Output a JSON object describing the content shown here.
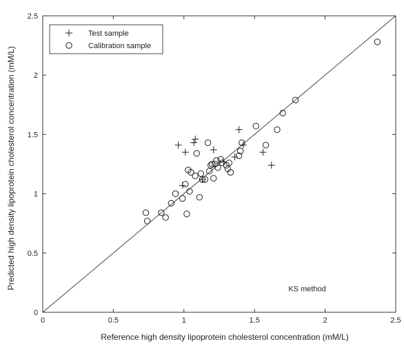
{
  "chart_data": {
    "type": "scatter",
    "xlabel": "Reference high density lipoprotein cholesterol concentration (mM/L)",
    "ylabel": "Predicted high density lipoprotein cholesterol concentration (mM/L)",
    "xlim": [
      0,
      2.5
    ],
    "ylim": [
      0,
      2.5
    ],
    "xticks": [
      0,
      0.5,
      1,
      1.5,
      2,
      2.5
    ],
    "yticks": [
      0,
      0.5,
      1,
      1.5,
      2,
      2.5
    ],
    "xtick_labels": [
      "0",
      "0.5",
      "1",
      "1.5",
      "2",
      "2.5"
    ],
    "ytick_labels": [
      "0",
      "0.5",
      "1",
      "1.5",
      "2",
      "2.5"
    ],
    "grid": false,
    "legend_position": "top-left",
    "annotation": "KS method",
    "reference_line": [
      [
        0,
        0
      ],
      [
        2.5,
        2.5
      ]
    ],
    "series": [
      {
        "name": "Test sample",
        "marker": "plus",
        "points": [
          [
            0.96,
            1.41
          ],
          [
            0.99,
            1.07
          ],
          [
            1.01,
            1.35
          ],
          [
            1.07,
            1.43
          ],
          [
            1.08,
            1.46
          ],
          [
            1.13,
            1.12
          ],
          [
            1.21,
            1.37
          ],
          [
            1.28,
            1.27
          ],
          [
            1.36,
            1.31
          ],
          [
            1.39,
            1.54
          ],
          [
            1.42,
            1.41
          ],
          [
            1.56,
            1.35
          ],
          [
            1.62,
            1.24
          ]
        ]
      },
      {
        "name": "Calibration sample",
        "marker": "circle",
        "points": [
          [
            0.73,
            0.84
          ],
          [
            0.74,
            0.77
          ],
          [
            0.84,
            0.84
          ],
          [
            0.87,
            0.8
          ],
          [
            0.91,
            0.92
          ],
          [
            0.94,
            1.0
          ],
          [
            0.99,
            0.96
          ],
          [
            1.01,
            1.08
          ],
          [
            1.02,
            0.83
          ],
          [
            1.03,
            1.2
          ],
          [
            1.04,
            1.02
          ],
          [
            1.05,
            1.18
          ],
          [
            1.08,
            1.15
          ],
          [
            1.09,
            1.34
          ],
          [
            1.11,
            0.97
          ],
          [
            1.12,
            1.17
          ],
          [
            1.13,
            1.12
          ],
          [
            1.15,
            1.12
          ],
          [
            1.17,
            1.43
          ],
          [
            1.18,
            1.19
          ],
          [
            1.19,
            1.24
          ],
          [
            1.2,
            1.25
          ],
          [
            1.21,
            1.13
          ],
          [
            1.22,
            1.25
          ],
          [
            1.23,
            1.28
          ],
          [
            1.24,
            1.22
          ],
          [
            1.26,
            1.29
          ],
          [
            1.27,
            1.26
          ],
          [
            1.3,
            1.24
          ],
          [
            1.31,
            1.21
          ],
          [
            1.32,
            1.26
          ],
          [
            1.33,
            1.18
          ],
          [
            1.39,
            1.32
          ],
          [
            1.4,
            1.36
          ],
          [
            1.41,
            1.43
          ],
          [
            1.51,
            1.57
          ],
          [
            1.58,
            1.41
          ],
          [
            1.66,
            1.54
          ],
          [
            1.7,
            1.68
          ],
          [
            1.79,
            1.79
          ],
          [
            2.37,
            2.28
          ]
        ]
      }
    ]
  }
}
